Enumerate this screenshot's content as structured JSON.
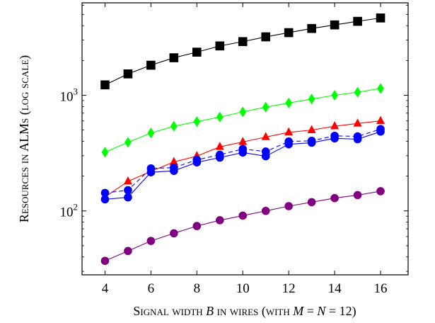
{
  "chart_data": {
    "type": "line",
    "xlabel": {
      "parts": [
        {
          "text": "Signal width ",
          "style": "smallcaps"
        },
        {
          "text": "B",
          "style": "italic"
        },
        {
          "text": " in wires (with ",
          "style": "smallcaps"
        },
        {
          "text": "M",
          "style": "italic"
        },
        {
          "text": " = ",
          "style": "normal"
        },
        {
          "text": "N",
          "style": "italic"
        },
        {
          "text": " = 12)",
          "style": "normal"
        }
      ]
    },
    "ylabel": {
      "parts": [
        {
          "text": "Resources in ALMs (log scale)",
          "style": "smallcaps"
        }
      ]
    },
    "xlim": [
      3,
      17.2
    ],
    "ylim": [
      28,
      6300
    ],
    "yscale": "log",
    "xticks": [
      4,
      6,
      8,
      10,
      12,
      14,
      16
    ],
    "yticks": [
      {
        "value": 100,
        "base": "10",
        "exp": "2"
      },
      {
        "value": 1000,
        "base": "10",
        "exp": "3"
      }
    ],
    "grid": false,
    "x": [
      4,
      5,
      6,
      7,
      8,
      9,
      10,
      11,
      12,
      13,
      14,
      15,
      16
    ],
    "series": [
      {
        "color": "#000000",
        "marker": "square",
        "line": "solid",
        "values": [
          1230,
          1530,
          1820,
          2110,
          2360,
          2670,
          2910,
          3200,
          3480,
          3780,
          4060,
          4360,
          4660
        ]
      },
      {
        "color": "#00ff00",
        "marker": "diamond",
        "line": "solid",
        "values": [
          322,
          392,
          472,
          540,
          592,
          648,
          718,
          790,
          858,
          928,
          1000,
          1062,
          1145
        ]
      },
      {
        "color": "#ff0000",
        "marker": "triangle",
        "line": "solid",
        "values": [
          132,
          180,
          220,
          265,
          298,
          358,
          395,
          435,
          478,
          500,
          540,
          570,
          600
        ]
      },
      {
        "color": "#0000ff",
        "marker": "circle",
        "line": "dashed",
        "values": [
          143,
          151,
          233,
          237,
          276,
          306,
          343,
          326,
          398,
          404,
          446,
          441,
          510
        ]
      },
      {
        "color": "#0000ff",
        "marker": "circle",
        "line": "solid",
        "values": [
          126,
          131,
          216,
          222,
          263,
          289,
          320,
          297,
          377,
          389,
          424,
          417,
          485
        ]
      },
      {
        "color": "#800080",
        "marker": "circle",
        "line": "solid",
        "values": [
          37,
          45,
          55,
          64,
          74,
          83,
          91,
          100,
          110,
          119,
          129,
          137,
          148
        ]
      }
    ]
  }
}
